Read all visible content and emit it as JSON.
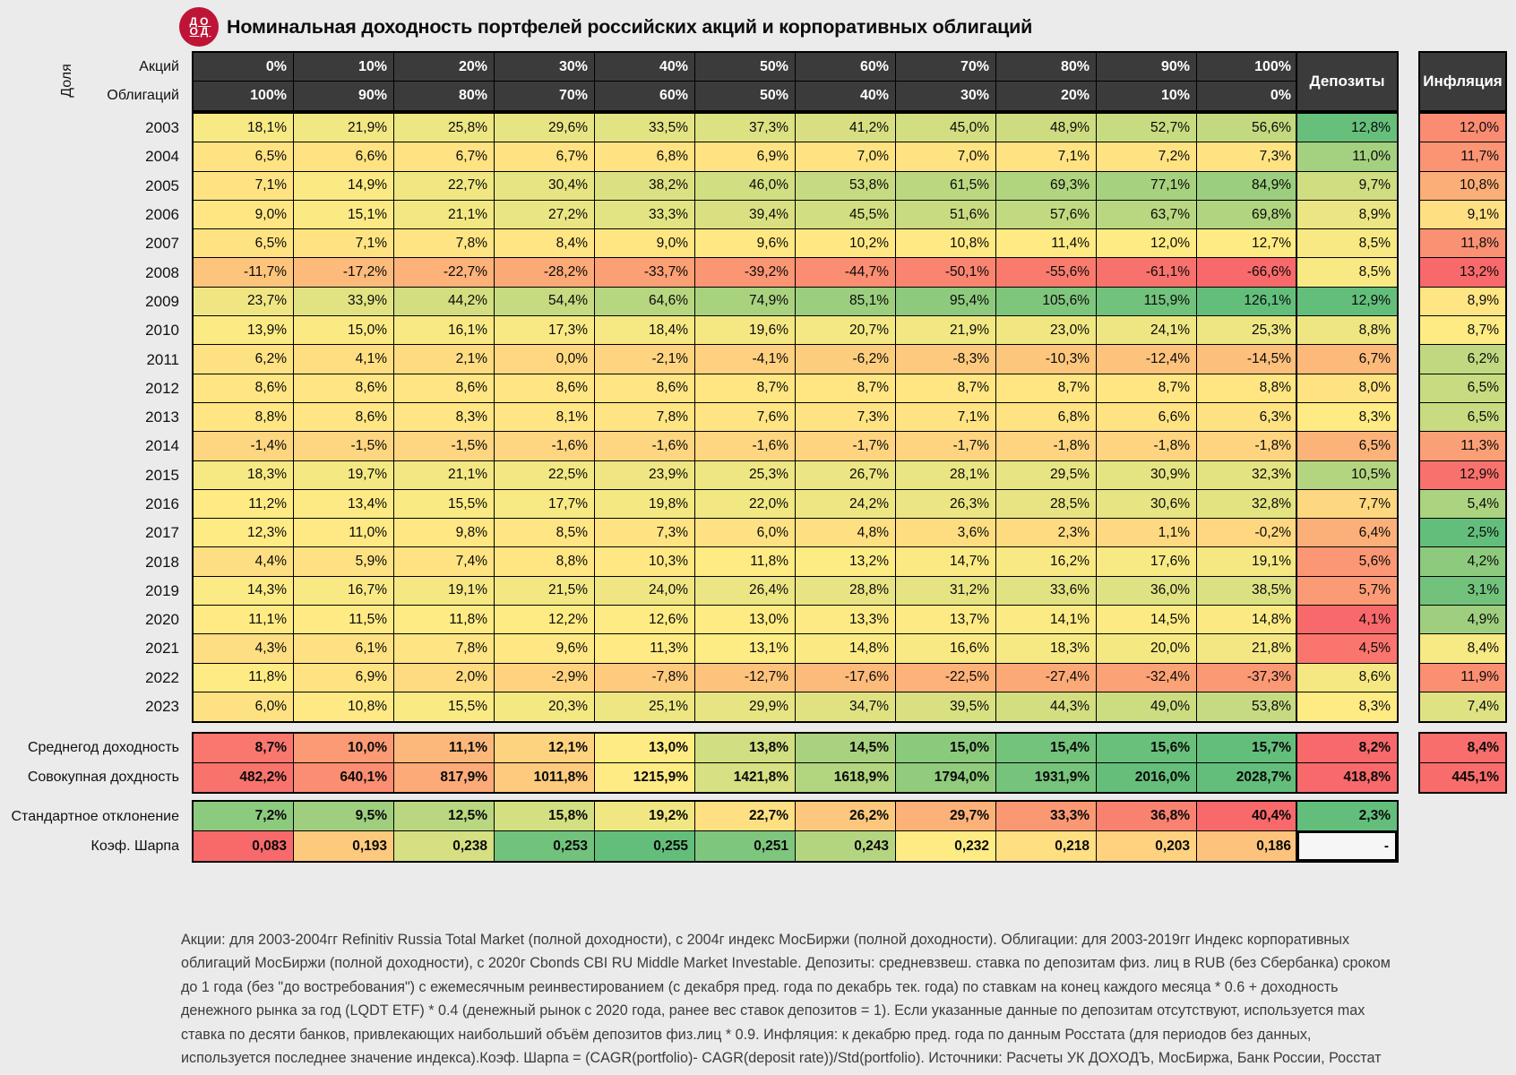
{
  "chart_data": {
    "type": "heatmap",
    "title": "Номинальная доходность портфелей российских акций и корпоративных облигаций",
    "logo": {
      "top": "ДО",
      "bottom": "ОД"
    },
    "labels": {
      "share": "Доля",
      "stocks": "Акций",
      "bonds": "Облигаций",
      "deposits": "Депозиты",
      "inflation": "Инфляция"
    },
    "columns_stocks": [
      "0%",
      "10%",
      "20%",
      "30%",
      "40%",
      "50%",
      "60%",
      "70%",
      "80%",
      "90%",
      "100%"
    ],
    "columns_bonds": [
      "100%",
      "90%",
      "80%",
      "70%",
      "60%",
      "50%",
      "40%",
      "30%",
      "20%",
      "10%",
      "0%"
    ],
    "rows": [
      {
        "year": "2003",
        "values": [
          "18,1%",
          "21,9%",
          "25,8%",
          "29,6%",
          "33,5%",
          "37,3%",
          "41,2%",
          "45,0%",
          "48,9%",
          "52,7%",
          "56,6%"
        ],
        "deposit": "12,8%",
        "inflation": "12,0%"
      },
      {
        "year": "2004",
        "values": [
          "6,5%",
          "6,6%",
          "6,7%",
          "6,7%",
          "6,8%",
          "6,9%",
          "7,0%",
          "7,0%",
          "7,1%",
          "7,2%",
          "7,3%"
        ],
        "deposit": "11,0%",
        "inflation": "11,7%"
      },
      {
        "year": "2005",
        "values": [
          "7,1%",
          "14,9%",
          "22,7%",
          "30,4%",
          "38,2%",
          "46,0%",
          "53,8%",
          "61,5%",
          "69,3%",
          "77,1%",
          "84,9%"
        ],
        "deposit": "9,7%",
        "inflation": "10,8%"
      },
      {
        "year": "2006",
        "values": [
          "9,0%",
          "15,1%",
          "21,1%",
          "27,2%",
          "33,3%",
          "39,4%",
          "45,5%",
          "51,6%",
          "57,6%",
          "63,7%",
          "69,8%"
        ],
        "deposit": "8,9%",
        "inflation": "9,1%"
      },
      {
        "year": "2007",
        "values": [
          "6,5%",
          "7,1%",
          "7,8%",
          "8,4%",
          "9,0%",
          "9,6%",
          "10,2%",
          "10,8%",
          "11,4%",
          "12,0%",
          "12,7%"
        ],
        "deposit": "8,5%",
        "inflation": "11,8%"
      },
      {
        "year": "2008",
        "values": [
          "-11,7%",
          "-17,2%",
          "-22,7%",
          "-28,2%",
          "-33,7%",
          "-39,2%",
          "-44,7%",
          "-50,1%",
          "-55,6%",
          "-61,1%",
          "-66,6%"
        ],
        "deposit": "8,5%",
        "inflation": "13,2%"
      },
      {
        "year": "2009",
        "values": [
          "23,7%",
          "33,9%",
          "44,2%",
          "54,4%",
          "64,6%",
          "74,9%",
          "85,1%",
          "95,4%",
          "105,6%",
          "115,9%",
          "126,1%"
        ],
        "deposit": "12,9%",
        "inflation": "8,9%"
      },
      {
        "year": "2010",
        "values": [
          "13,9%",
          "15,0%",
          "16,1%",
          "17,3%",
          "18,4%",
          "19,6%",
          "20,7%",
          "21,9%",
          "23,0%",
          "24,1%",
          "25,3%"
        ],
        "deposit": "8,8%",
        "inflation": "8,7%"
      },
      {
        "year": "2011",
        "values": [
          "6,2%",
          "4,1%",
          "2,1%",
          "0,0%",
          "-2,1%",
          "-4,1%",
          "-6,2%",
          "-8,3%",
          "-10,3%",
          "-12,4%",
          "-14,5%"
        ],
        "deposit": "6,7%",
        "inflation": "6,2%"
      },
      {
        "year": "2012",
        "values": [
          "8,6%",
          "8,6%",
          "8,6%",
          "8,6%",
          "8,6%",
          "8,7%",
          "8,7%",
          "8,7%",
          "8,7%",
          "8,7%",
          "8,8%"
        ],
        "deposit": "8,0%",
        "inflation": "6,5%"
      },
      {
        "year": "2013",
        "values": [
          "8,8%",
          "8,6%",
          "8,3%",
          "8,1%",
          "7,8%",
          "7,6%",
          "7,3%",
          "7,1%",
          "6,8%",
          "6,6%",
          "6,3%"
        ],
        "deposit": "8,3%",
        "inflation": "6,5%"
      },
      {
        "year": "2014",
        "values": [
          "-1,4%",
          "-1,5%",
          "-1,5%",
          "-1,6%",
          "-1,6%",
          "-1,6%",
          "-1,7%",
          "-1,7%",
          "-1,8%",
          "-1,8%",
          "-1,8%"
        ],
        "deposit": "6,5%",
        "inflation": "11,3%"
      },
      {
        "year": "2015",
        "values": [
          "18,3%",
          "19,7%",
          "21,1%",
          "22,5%",
          "23,9%",
          "25,3%",
          "26,7%",
          "28,1%",
          "29,5%",
          "30,9%",
          "32,3%"
        ],
        "deposit": "10,5%",
        "inflation": "12,9%"
      },
      {
        "year": "2016",
        "values": [
          "11,2%",
          "13,4%",
          "15,5%",
          "17,7%",
          "19,8%",
          "22,0%",
          "24,2%",
          "26,3%",
          "28,5%",
          "30,6%",
          "32,8%"
        ],
        "deposit": "7,7%",
        "inflation": "5,4%"
      },
      {
        "year": "2017",
        "values": [
          "12,3%",
          "11,0%",
          "9,8%",
          "8,5%",
          "7,3%",
          "6,0%",
          "4,8%",
          "3,6%",
          "2,3%",
          "1,1%",
          "-0,2%"
        ],
        "deposit": "6,4%",
        "inflation": "2,5%"
      },
      {
        "year": "2018",
        "values": [
          "4,4%",
          "5,9%",
          "7,4%",
          "8,8%",
          "10,3%",
          "11,8%",
          "13,2%",
          "14,7%",
          "16,2%",
          "17,6%",
          "19,1%"
        ],
        "deposit": "5,6%",
        "inflation": "4,2%"
      },
      {
        "year": "2019",
        "values": [
          "14,3%",
          "16,7%",
          "19,1%",
          "21,5%",
          "24,0%",
          "26,4%",
          "28,8%",
          "31,2%",
          "33,6%",
          "36,0%",
          "38,5%"
        ],
        "deposit": "5,7%",
        "inflation": "3,1%"
      },
      {
        "year": "2020",
        "values": [
          "11,1%",
          "11,5%",
          "11,8%",
          "12,2%",
          "12,6%",
          "13,0%",
          "13,3%",
          "13,7%",
          "14,1%",
          "14,5%",
          "14,8%"
        ],
        "deposit": "4,1%",
        "inflation": "4,9%"
      },
      {
        "year": "2021",
        "values": [
          "4,3%",
          "6,1%",
          "7,8%",
          "9,6%",
          "11,3%",
          "13,1%",
          "14,8%",
          "16,6%",
          "18,3%",
          "20,0%",
          "21,8%"
        ],
        "deposit": "4,5%",
        "inflation": "8,4%"
      },
      {
        "year": "2022",
        "values": [
          "11,8%",
          "6,9%",
          "2,0%",
          "-2,9%",
          "-7,8%",
          "-12,7%",
          "-17,6%",
          "-22,5%",
          "-27,4%",
          "-32,4%",
          "-37,3%"
        ],
        "deposit": "8,6%",
        "inflation": "11,9%"
      },
      {
        "year": "2023",
        "values": [
          "6,0%",
          "10,8%",
          "15,5%",
          "20,3%",
          "25,1%",
          "29,9%",
          "34,7%",
          "39,5%",
          "44,3%",
          "49,0%",
          "53,8%"
        ],
        "deposit": "8,3%",
        "inflation": "7,4%"
      }
    ],
    "summary_rows": [
      {
        "label": "Среднегод доходность",
        "values": [
          "8,7%",
          "10,0%",
          "11,1%",
          "12,1%",
          "13,0%",
          "13,8%",
          "14,5%",
          "15,0%",
          "15,4%",
          "15,6%",
          "15,7%"
        ],
        "deposit": "8,2%",
        "inflation": "8,4%",
        "inverted": false
      },
      {
        "label": "Совокупная дохдность",
        "values": [
          "482,2%",
          "640,1%",
          "817,9%",
          "1011,8%",
          "1215,9%",
          "1421,8%",
          "1618,9%",
          "1794,0%",
          "1931,9%",
          "2016,0%",
          "2028,7%"
        ],
        "deposit": "418,8%",
        "inflation": "445,1%",
        "inverted": false
      },
      {
        "label": "Стандартное отклонение",
        "values": [
          "7,2%",
          "9,5%",
          "12,5%",
          "15,8%",
          "19,2%",
          "22,7%",
          "26,2%",
          "29,7%",
          "33,3%",
          "36,8%",
          "40,4%"
        ],
        "deposit": "2,3%",
        "inflation": null,
        "inverted": true
      },
      {
        "label": "Коэф. Шарпа",
        "values": [
          "0,083",
          "0,193",
          "0,238",
          "0,253",
          "0,255",
          "0,251",
          "0,243",
          "0,232",
          "0,218",
          "0,203",
          "0,186"
        ],
        "deposit": "-",
        "inflation": null,
        "inverted": false
      }
    ],
    "color_scale": {
      "min": "#F8696B",
      "mid": "#FFEB84",
      "max": "#63BE7B",
      "midpoint": "median",
      "header_bg": "#3B3B3B",
      "page_bg": "#EBEBEB",
      "logo": "#BE1436"
    },
    "footnote_lines": [
      "Акции: для 2003-2004гг Refinitiv Russia Total Market (полной доходности), с 2004г индекс МосБиржи (полной доходности). Облигации: для 2003-2019гг Индекс корпоративных",
      "облигаций МосБиржи (полной доходности), с 2020г Cbonds CBI RU Middle Market Investable. Депозиты: средневзвеш. ставка по  депозитам физ. лиц в RUB (без Сбербанка) сроком",
      "до 1 года (без \"до востребования\") с ежемесячным реинвестированием (с декабря пред. года по декабрь тек. года) по ставкам на конец каждого месяца * 0.6 + доходность",
      "денежного рынка за год (LQDT ETF) * 0.4 (денежный рынок с 2020 года, ранее вес ставок депозитов = 1). Если указанные данные по депозитам отсутствуют, используется max",
      "ставка по десяти банков, привлекающих наибольший объём депозитов физ.лиц * 0.9. Инфляция: к декабрю пред. года по данным Росстата (для периодов без данных,",
      "используется последнее значение индекса).Коэф. Шарпа = (CAGR(portfolio)- CAGR(deposit rate))/Std(portfolio). Источники: Расчеты УК ДОХОДЪ, МосБиржа, Банк России, Росстат"
    ]
  }
}
